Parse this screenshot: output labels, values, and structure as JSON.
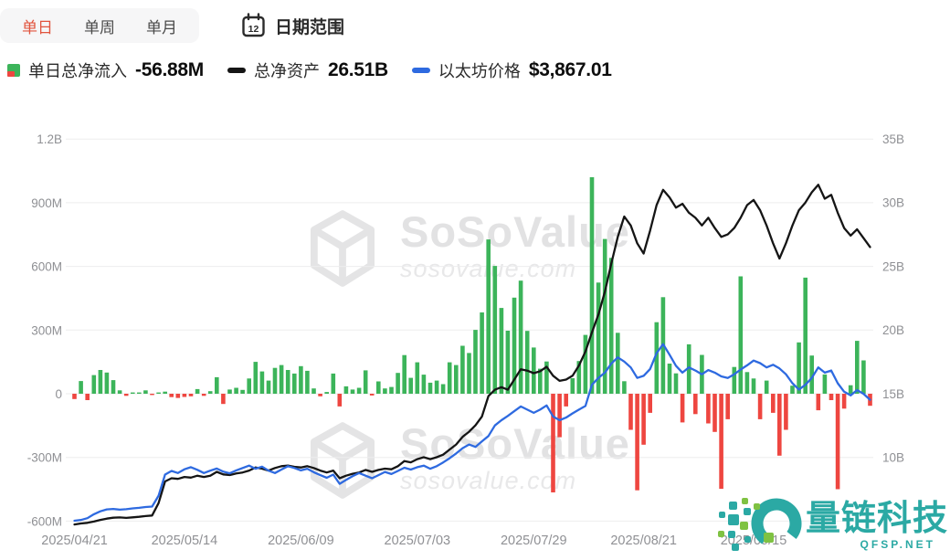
{
  "toolbar": {
    "tabs": [
      {
        "label": "单日",
        "active": true
      },
      {
        "label": "单周",
        "active": false
      },
      {
        "label": "单月",
        "active": false
      }
    ],
    "date_range": {
      "label": "日期范围",
      "calendar_day": "12"
    }
  },
  "legend": {
    "flow": {
      "label": "单日总净流入",
      "value": "-56.88M"
    },
    "assets": {
      "label": "总净资产",
      "value": "26.51B"
    },
    "price": {
      "label": "以太坊价格",
      "value": "$3,867.01"
    }
  },
  "watermark": {
    "brand": "SoSoValue",
    "url": "sosovalue.com"
  },
  "footer_logo": {
    "name": "量链科技",
    "site": "QFSP.NET"
  },
  "colors": {
    "inflow": "#3cb45a",
    "outflow": "#ee4640",
    "assets_line": "#151515",
    "price_line": "#2e6ae0",
    "active_tab": "#e1543e",
    "axis_text": "#8f9094",
    "grid": "#ededee",
    "watermark": "#e2e2e3",
    "logo_teal": "#2ba9a4",
    "logo_green": "#7fc242"
  },
  "chart_data": {
    "type": "bar+line",
    "title": "",
    "x_tick_labels": [
      "2025/04/21",
      "2025/05/14",
      "2025/06/09",
      "2025/07/03",
      "2025/07/29",
      "2025/08/21",
      "2025/09/15"
    ],
    "x_tick_indices": [
      0,
      17,
      35,
      53,
      71,
      88,
      105
    ],
    "left_axis": {
      "unit": "M",
      "ticks": [
        "1.2B",
        "900M",
        "600M",
        "300M",
        "0",
        "-300M",
        "-600M"
      ],
      "values": [
        1200,
        900,
        600,
        300,
        0,
        -300,
        -600
      ],
      "ylim": [
        -600,
        1200
      ]
    },
    "right_axis": {
      "unit": "B",
      "ticks": [
        "35B",
        "30B",
        "25B",
        "20B",
        "15B",
        "10B"
      ],
      "values": [
        35,
        30,
        25,
        20,
        15,
        10
      ],
      "ylim": [
        5,
        35
      ]
    },
    "grid": true,
    "legend_position": "top-left",
    "series": [
      {
        "name": "单日总净流入",
        "type": "bar",
        "unit": "M USD",
        "axis": "left",
        "values": [
          -25,
          60,
          -30,
          88,
          112,
          100,
          64,
          16,
          -10,
          6,
          4,
          16,
          -6,
          4,
          10,
          -16,
          -20,
          -15,
          -12,
          22,
          -10,
          12,
          78,
          -48,
          20,
          28,
          18,
          72,
          150,
          105,
          62,
          122,
          135,
          112,
          95,
          130,
          108,
          25,
          -12,
          8,
          95,
          -60,
          35,
          20,
          28,
          110,
          -8,
          58,
          25,
          32,
          98,
          182,
          75,
          148,
          90,
          52,
          62,
          45,
          148,
          135,
          226,
          192,
          301,
          383,
          727,
          602,
          404,
          297,
          453,
          533,
          296,
          218,
          118,
          152,
          -465,
          -205,
          -60,
          73,
          154,
          277,
          1020,
          524,
          729,
          640,
          287,
          59,
          -170,
          -455,
          -240,
          -90,
          337,
          455,
          142,
          96,
          -135,
          233,
          -96,
          183,
          -140,
          -180,
          -448,
          -120,
          126,
          553,
          102,
          72,
          -120,
          62,
          -90,
          -292,
          -170,
          38,
          242,
          547,
          180,
          -78,
          91,
          -30,
          -450,
          -70,
          40,
          249,
          157,
          -56.88
        ]
      },
      {
        "name": "总净资产",
        "type": "line",
        "unit": "B USD",
        "axis": "right",
        "values": [
          4.72,
          4.8,
          4.85,
          4.95,
          5.08,
          5.18,
          5.25,
          5.27,
          5.24,
          5.28,
          5.32,
          5.38,
          5.42,
          6.4,
          8.1,
          8.35,
          8.3,
          8.45,
          8.4,
          8.55,
          8.45,
          8.55,
          8.85,
          8.65,
          8.6,
          8.72,
          8.8,
          8.95,
          9.2,
          9.1,
          8.95,
          9.15,
          9.3,
          9.35,
          9.25,
          9.2,
          9.3,
          9.15,
          8.95,
          8.8,
          8.95,
          8.35,
          8.55,
          8.7,
          8.8,
          9.0,
          8.85,
          9.0,
          9.1,
          9.05,
          9.3,
          9.7,
          9.6,
          9.85,
          10.0,
          9.85,
          10.0,
          10.2,
          10.6,
          11.0,
          11.6,
          12.0,
          12.5,
          13.2,
          14.8,
          15.3,
          15.5,
          15.3,
          16.1,
          16.9,
          16.8,
          16.6,
          16.75,
          17.1,
          16.4,
          16.0,
          16.1,
          16.4,
          17.2,
          18.3,
          19.8,
          21.2,
          23.0,
          25.2,
          27.3,
          28.9,
          28.2,
          26.8,
          26.0,
          27.8,
          29.8,
          31.0,
          30.4,
          29.6,
          29.9,
          29.2,
          28.8,
          28.2,
          28.8,
          28.0,
          27.3,
          27.5,
          28.0,
          28.8,
          29.8,
          30.2,
          29.4,
          28.2,
          26.8,
          25.6,
          26.8,
          28.2,
          29.4,
          30.0,
          30.8,
          31.4,
          30.3,
          30.6,
          29.2,
          28.0,
          27.4,
          27.9,
          27.2,
          26.51
        ]
      },
      {
        "name": "以太坊价格",
        "type": "line",
        "unit": "USD",
        "axis": "hidden",
        "values": [
          1577,
          1590,
          1625,
          1700,
          1755,
          1790,
          1800,
          1785,
          1795,
          1810,
          1820,
          1835,
          1845,
          2050,
          2450,
          2520,
          2480,
          2550,
          2590,
          2540,
          2480,
          2525,
          2565,
          2505,
          2475,
          2530,
          2575,
          2620,
          2560,
          2600,
          2525,
          2480,
          2545,
          2610,
          2575,
          2530,
          2560,
          2495,
          2440,
          2390,
          2450,
          2275,
          2350,
          2420,
          2480,
          2430,
          2380,
          2440,
          2500,
          2460,
          2520,
          2580,
          2545,
          2590,
          2620,
          2560,
          2610,
          2680,
          2760,
          2850,
          2950,
          3020,
          2975,
          3080,
          3180,
          3380,
          3480,
          3560,
          3650,
          3740,
          3680,
          3620,
          3680,
          3760,
          3550,
          3480,
          3530,
          3610,
          3680,
          3750,
          4150,
          4280,
          4380,
          4550,
          4670,
          4590,
          4480,
          4280,
          4320,
          4450,
          4750,
          4920,
          4720,
          4510,
          4380,
          4480,
          4420,
          4350,
          4430,
          4380,
          4310,
          4280,
          4350,
          4440,
          4520,
          4610,
          4560,
          4480,
          4530,
          4460,
          4350,
          4180,
          4060,
          4150,
          4280,
          4480,
          4380,
          4420,
          4180,
          4020,
          3950,
          4050,
          3980,
          3867.01
        ]
      }
    ]
  }
}
